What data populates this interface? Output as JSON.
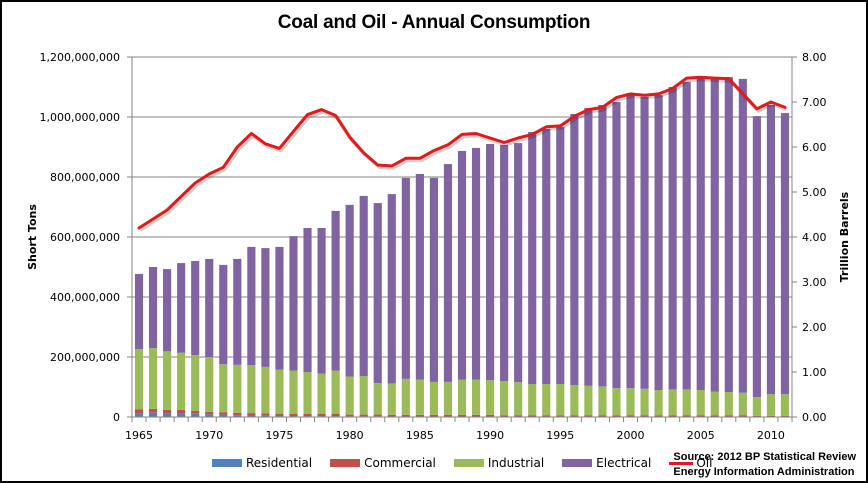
{
  "chart_data": {
    "type": "bar",
    "subtype": "stacked-bar-with-line-secondary-axis",
    "title": "Coal and Oil - Annual Consumption",
    "xlabel": "",
    "ylabel": "Short Tons",
    "y2label": "Trillion Barrels",
    "ylim": [
      0,
      1200000000
    ],
    "y2lim": [
      0,
      8
    ],
    "yticks": [
      "0",
      "200,000,000",
      "400,000,000",
      "600,000,000",
      "800,000,000",
      "1,000,000,000",
      "1,200,000,000"
    ],
    "y2ticks": [
      "0.00",
      "1.00",
      "2.00",
      "3.00",
      "4.00",
      "5.00",
      "6.00",
      "7.00",
      "8.00"
    ],
    "xticks": [
      "1965",
      "1970",
      "1975",
      "1980",
      "1985",
      "1990",
      "1995",
      "2000",
      "2005",
      "2010"
    ],
    "grid": true,
    "legend": "bottom",
    "categories": [
      1965,
      1966,
      1967,
      1968,
      1969,
      1970,
      1971,
      1972,
      1973,
      1974,
      1975,
      1976,
      1977,
      1978,
      1979,
      1980,
      1981,
      1982,
      1983,
      1984,
      1985,
      1986,
      1987,
      1988,
      1989,
      1990,
      1991,
      1992,
      1993,
      1994,
      1995,
      1996,
      1997,
      1998,
      1999,
      2000,
      2001,
      2002,
      2003,
      2004,
      2005,
      2006,
      2007,
      2008,
      2009,
      2010,
      2011
    ],
    "series": [
      {
        "name": "Residential",
        "color": "#4f81bd",
        "axis": "left",
        "values": [
          13000000,
          14000000,
          12000000,
          12000000,
          11000000,
          9000000,
          8000000,
          6000000,
          5000000,
          4000000,
          3000000,
          3000000,
          3000000,
          3000000,
          3000000,
          2000000,
          2000000,
          2000000,
          1000000,
          1000000,
          1000000,
          1000000,
          1000000,
          1000000,
          1000000,
          1000000,
          1000000,
          1000000,
          1000000,
          1000000,
          1000000,
          1000000,
          1000000,
          1000000,
          1000000,
          1000000,
          1000000,
          1000000,
          1000000,
          1000000,
          1000000,
          1000000,
          1000000,
          1000000,
          1000000,
          1000000,
          1000000
        ]
      },
      {
        "name": "Commercial",
        "color": "#c0504d",
        "axis": "left",
        "values": [
          13000000,
          13000000,
          12000000,
          12000000,
          10000000,
          8000000,
          8000000,
          8000000,
          8000000,
          8000000,
          7000000,
          7000000,
          7000000,
          7000000,
          7000000,
          6000000,
          6000000,
          6000000,
          6000000,
          6000000,
          6000000,
          6000000,
          6000000,
          6000000,
          6000000,
          6000000,
          5000000,
          5000000,
          5000000,
          5000000,
          5000000,
          5000000,
          5000000,
          5000000,
          5000000,
          5000000,
          5000000,
          5000000,
          5000000,
          5000000,
          4000000,
          4000000,
          4000000,
          4000000,
          3000000,
          3000000,
          3000000
        ]
      },
      {
        "name": "Industrial",
        "color": "#9bbb59",
        "axis": "left",
        "values": [
          200000000,
          203000000,
          195000000,
          190000000,
          185000000,
          183000000,
          160000000,
          160000000,
          160000000,
          155000000,
          148000000,
          145000000,
          140000000,
          135000000,
          145000000,
          127000000,
          128000000,
          105000000,
          105000000,
          120000000,
          118000000,
          110000000,
          110000000,
          118000000,
          118000000,
          116000000,
          114000000,
          110000000,
          104000000,
          104000000,
          104000000,
          100000000,
          98000000,
          96000000,
          90000000,
          90000000,
          88000000,
          84000000,
          86000000,
          86000000,
          85000000,
          80000000,
          78000000,
          76000000,
          62000000,
          72000000,
          72000000
        ]
      },
      {
        "name": "Electrical",
        "color": "#8064a2",
        "axis": "left",
        "values": [
          251000000,
          270000000,
          274000000,
          299000000,
          314000000,
          327000000,
          331000000,
          353000000,
          394000000,
          396000000,
          409000000,
          448000000,
          480000000,
          485000000,
          532000000,
          572000000,
          601000000,
          600000000,
          631000000,
          670000000,
          685000000,
          680000000,
          726000000,
          762000000,
          772000000,
          787000000,
          787000000,
          797000000,
          840000000,
          850000000,
          857000000,
          904000000,
          926000000,
          938000000,
          954000000,
          984000000,
          973000000,
          983000000,
          1008000000,
          1025000000,
          1043000000,
          1042000000,
          1050000000,
          1046000000,
          937000000,
          964000000,
          937000000
        ]
      },
      {
        "name": "Oil",
        "color": "#e31a1c",
        "axis": "right",
        "type": "line",
        "values": [
          4.2,
          4.4,
          4.6,
          4.9,
          5.2,
          5.4,
          5.55,
          6.0,
          6.3,
          6.07,
          5.97,
          6.35,
          6.72,
          6.83,
          6.7,
          6.22,
          5.87,
          5.6,
          5.58,
          5.75,
          5.75,
          5.92,
          6.05,
          6.28,
          6.3,
          6.2,
          6.1,
          6.2,
          6.28,
          6.45,
          6.47,
          6.68,
          6.83,
          6.88,
          7.1,
          7.18,
          7.15,
          7.18,
          7.3,
          7.53,
          7.55,
          7.53,
          7.52,
          7.18,
          6.85,
          7.0,
          6.88
        ]
      }
    ]
  },
  "legend": {
    "items": [
      {
        "label": "Residential",
        "color": "#4f81bd"
      },
      {
        "label": "Commercial",
        "color": "#c0504d"
      },
      {
        "label": "Industrial",
        "color": "#9bbb59"
      },
      {
        "label": "Electrical",
        "color": "#8064a2"
      },
      {
        "label": "Oil",
        "color": "#e31a1c"
      }
    ]
  },
  "source": {
    "line1": "Source: 2012 BP Statistical Review",
    "line2": "Energy Information Administration"
  }
}
